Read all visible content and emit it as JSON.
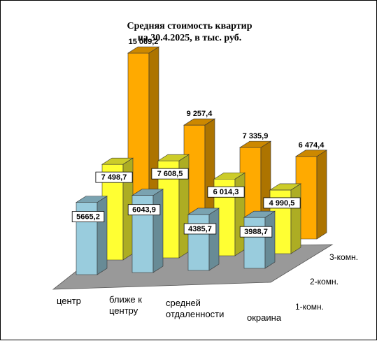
{
  "chart_data": {
    "type": "bar",
    "style": "3d-clustered-depth",
    "title_line1": "Средняя стоимость квартир",
    "title_line2": "на 30.4.2025, в тыс. руб.",
    "categories": [
      {
        "lines": [
          "центр"
        ]
      },
      {
        "lines": [
          "ближе к",
          "центру"
        ]
      },
      {
        "lines": [
          "средней",
          "отдаленности"
        ]
      },
      {
        "lines": [
          "окраина"
        ]
      }
    ],
    "series": [
      {
        "name": "1-комн.",
        "values": [
          5665.2,
          6043.9,
          4385.7,
          3988.7
        ],
        "labels": [
          "5665,2",
          "6043,9",
          "4385,7",
          "3988,7"
        ],
        "color": "#99ccdd"
      },
      {
        "name": "2-комн.",
        "values": [
          7498.7,
          7608.5,
          6014.3,
          4990.5
        ],
        "labels": [
          "7 498,7",
          "7 608,5",
          "6 014,3",
          "4 990,5"
        ],
        "color": "#ffff33"
      },
      {
        "name": "3-комн.",
        "values": [
          15069.2,
          9257.4,
          7335.9,
          6474.4
        ],
        "labels": [
          "15 069,2",
          "9 257,4",
          "7 335,9",
          "6 474,4"
        ],
        "color": "#ffaa00"
      }
    ],
    "floor_color": "#999999",
    "grid": false,
    "legend": "none"
  }
}
